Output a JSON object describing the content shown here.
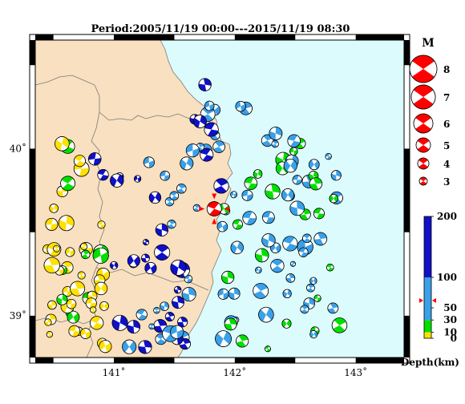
{
  "title": "Period:2005/11/19 00:00---2015/11/19 08:30",
  "map": {
    "lon_range": [
      140.35,
      143.4
    ],
    "lat_range": [
      38.75,
      40.65
    ],
    "lon_ticks": [
      {
        "value": 141,
        "label": "141˚"
      },
      {
        "value": 142,
        "label": "142˚"
      },
      {
        "value": 143,
        "label": "143˚"
      }
    ],
    "lat_ticks": [
      {
        "value": 40,
        "label": "40˚"
      },
      {
        "value": 39,
        "label": "39˚"
      }
    ],
    "colors": {
      "land": "#f8e0c0",
      "sea": "#dcfbfc",
      "boundary": "#7a7a7a",
      "frame": "#000000"
    }
  },
  "magnitude_legend": {
    "title": "M",
    "items": [
      "8",
      "7",
      "6",
      "5",
      "4",
      "3"
    ],
    "color": "#ff0000"
  },
  "depth_scale": {
    "labels": [
      "200",
      "100",
      "50",
      "30",
      "10",
      "0"
    ],
    "title": "Depth(km)",
    "bands": [
      {
        "from": 0,
        "to": 10,
        "color": "#ffe000"
      },
      {
        "from": 10,
        "to": 30,
        "color": "#00e000"
      },
      {
        "from": 30,
        "to": 100,
        "color": "#3aa0e8"
      },
      {
        "from": 100,
        "to": 200,
        "color": "#1010c8"
      }
    ],
    "marker_depth": 62
  },
  "highlight_event": {
    "lon": 141.83,
    "lat": 39.64,
    "color": "#ff0000"
  }
}
